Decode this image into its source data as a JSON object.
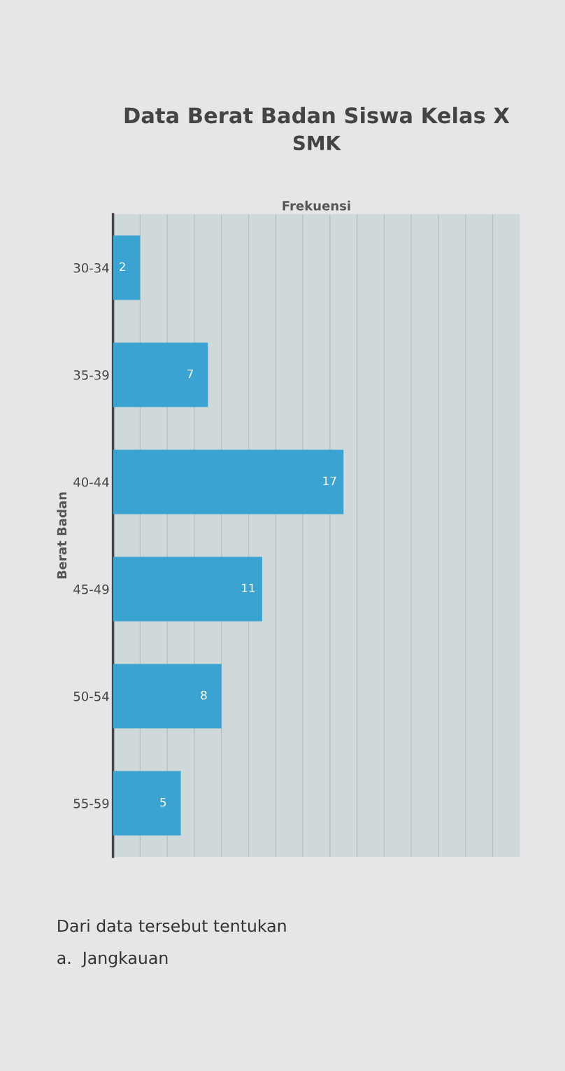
{
  "chart_data": {
    "type": "bar",
    "orientation": "horizontal",
    "title": "Data Berat Badan Siswa Kelas X",
    "subtitle": "SMK",
    "xlabel": "Frekuensi",
    "ylabel": "Berat Badan",
    "categories": [
      "30-34",
      "35-39",
      "40-44",
      "45-49",
      "50-54",
      "55-59"
    ],
    "values": [
      2,
      7,
      17,
      11,
      8,
      5
    ],
    "color": "#3aa3d2",
    "data_labels": true,
    "xlim": [
      0,
      30
    ],
    "xticks": [
      {
        "value": 2,
        "label": null
      },
      {
        "value": 4,
        "label": null
      },
      {
        "value": 6,
        "label": null
      },
      {
        "value": 8,
        "label": null
      },
      {
        "value": 10,
        "label": null
      },
      {
        "value": 12,
        "label": null
      },
      {
        "value": 14,
        "label": null
      },
      {
        "value": 16,
        "label": null
      },
      {
        "value": 18,
        "label": null
      },
      {
        "value": 20,
        "label": null
      },
      {
        "value": 22,
        "label": null
      },
      {
        "value": 24,
        "label": null
      },
      {
        "value": 26,
        "label": null
      },
      {
        "value": 28,
        "label": null
      }
    ],
    "grid": "x",
    "legend": false,
    "annotations": [
      "Dari data tersebut tentukan",
      "a.  Jangkauan"
    ]
  }
}
